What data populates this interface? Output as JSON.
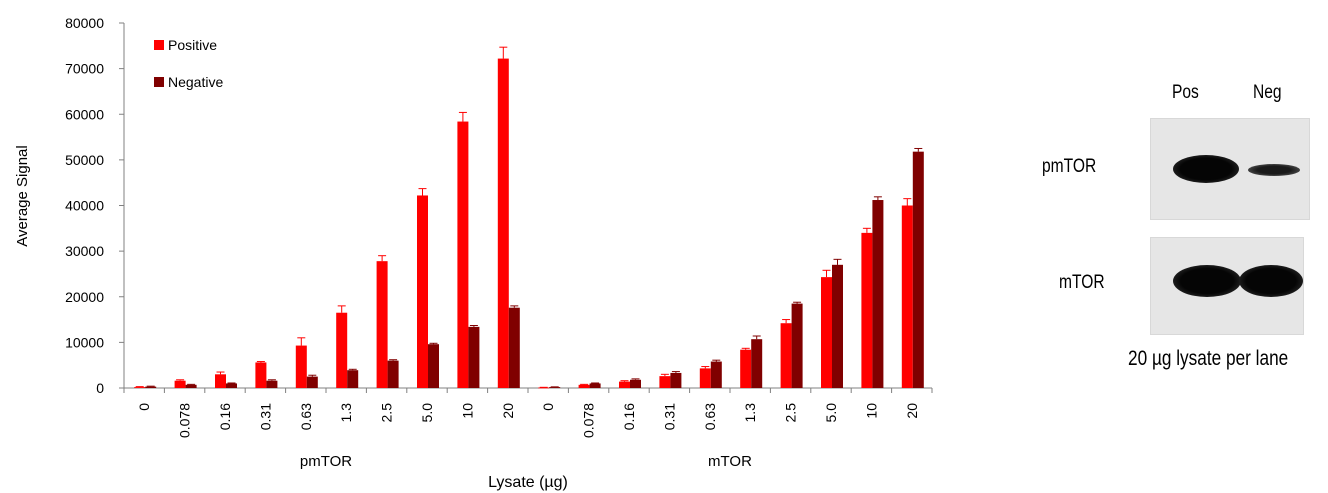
{
  "chart_data": {
    "type": "bar",
    "ylabel": "Average Signal",
    "xlabel": "Lysate (µg)",
    "ylim": [
      0,
      80000
    ],
    "yticks": [
      0,
      10000,
      20000,
      30000,
      40000,
      50000,
      60000,
      70000,
      80000
    ],
    "legend_position": "top-left",
    "groups": [
      {
        "name": "pmTOR",
        "categories": [
          "0",
          "0.078",
          "0.16",
          "0.31",
          "0.63",
          "1.3",
          "2.5",
          "5.0",
          "10",
          "20"
        ],
        "series": [
          {
            "name": "Positive",
            "color": "#ff0000",
            "values": [
              200,
              1600,
              3000,
              5600,
              9300,
              16500,
              27800,
              42200,
              58400,
              72200
            ],
            "errors": [
              100,
              200,
              500,
              200,
              1700,
              1500,
              1200,
              1500,
              2000,
              2500
            ]
          },
          {
            "name": "Negative",
            "color": "#800000",
            "values": [
              300,
              700,
              1000,
              1600,
              2500,
              3900,
              6000,
              9600,
              13400,
              17600
            ],
            "errors": [
              100,
              100,
              100,
              200,
              300,
              200,
              200,
              200,
              300,
              400
            ]
          }
        ]
      },
      {
        "name": "mTOR",
        "categories": [
          "0",
          "0.078",
          "0.16",
          "0.31",
          "0.63",
          "1.3",
          "2.5",
          "5.0",
          "10",
          "20"
        ],
        "series": [
          {
            "name": "Positive",
            "color": "#ff0000",
            "values": [
              100,
              700,
              1400,
              2600,
              4300,
              8400,
              14200,
              24300,
              34000,
              40000
            ],
            "errors": [
              50,
              100,
              200,
              400,
              400,
              300,
              800,
              1500,
              1000,
              1500
            ]
          },
          {
            "name": "Negative",
            "color": "#800000",
            "values": [
              200,
              1000,
              1800,
              3300,
              5800,
              10700,
              18500,
              27000,
              41200,
              51800
            ],
            "errors": [
              50,
              100,
              200,
              300,
              300,
              700,
              300,
              1200,
              700,
              700
            ]
          }
        ]
      }
    ]
  },
  "western_blot": {
    "columns": [
      "Pos",
      "Neg"
    ],
    "rows": [
      "pmTOR",
      "mTOR"
    ],
    "caption": "20 µg lysate per lane"
  }
}
